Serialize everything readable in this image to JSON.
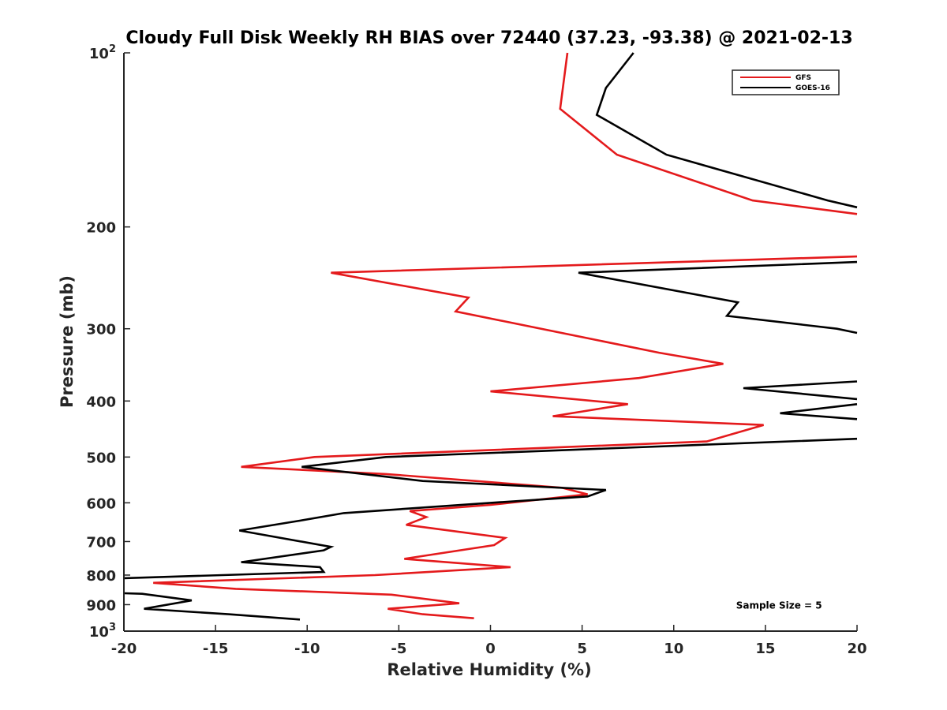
{
  "chart_data": {
    "type": "line",
    "title": "Cloudy Full Disk Weekly RH BIAS over 72440 (37.23, -93.38) @ 2021-02-13",
    "xlabel": "Relative Humidity (%)",
    "ylabel": "Pressure (mb)",
    "xlim": [
      -20,
      20
    ],
    "ylim": [
      100,
      1000
    ],
    "y_scale": "log",
    "y_reversed": true,
    "grid": false,
    "legend_position": "top-right",
    "x_ticks": [
      -20,
      -15,
      -10,
      -5,
      0,
      5,
      10,
      15,
      20
    ],
    "y_ticks": [
      {
        "value": 100,
        "label": "10",
        "sup": "2"
      },
      {
        "value": 200,
        "label": "200",
        "sup": ""
      },
      {
        "value": 300,
        "label": "300",
        "sup": ""
      },
      {
        "value": 400,
        "label": "400",
        "sup": ""
      },
      {
        "value": 500,
        "label": "500",
        "sup": ""
      },
      {
        "value": 600,
        "label": "600",
        "sup": ""
      },
      {
        "value": 700,
        "label": "700",
        "sup": ""
      },
      {
        "value": 800,
        "label": "800",
        "sup": ""
      },
      {
        "value": 900,
        "label": "900",
        "sup": ""
      },
      {
        "value": 1000,
        "label": "10",
        "sup": "3"
      }
    ],
    "series": [
      {
        "name": "GFS",
        "color": "#e41a1c",
        "points": [
          [
            4.2,
            100
          ],
          [
            3.8,
            125
          ],
          [
            6.9,
            150
          ],
          [
            14.3,
            180
          ],
          [
            20,
            190
          ],
          [
            null,
            null
          ],
          [
            20,
            225
          ],
          [
            -8.7,
            240
          ],
          [
            -1.2,
            265
          ],
          [
            -1.9,
            280
          ],
          [
            9.2,
            330
          ],
          [
            12.7,
            345
          ],
          [
            8.1,
            365
          ],
          [
            0,
            385
          ],
          [
            7.5,
            405
          ],
          [
            3.4,
            425
          ],
          [
            14.9,
            440
          ],
          [
            11.8,
            470
          ],
          [
            -9.6,
            500
          ],
          [
            -13.6,
            520
          ],
          [
            -5.7,
            535
          ],
          [
            3.9,
            565
          ],
          [
            5.3,
            580
          ],
          [
            0,
            605
          ],
          [
            -4.4,
            620
          ],
          [
            -3.5,
            635
          ],
          [
            -4.6,
            655
          ],
          [
            0.8,
            690
          ],
          [
            0.2,
            710
          ],
          [
            -4.7,
            750
          ],
          [
            1.1,
            775
          ],
          [
            -6.3,
            800
          ],
          [
            -18.4,
            825
          ],
          [
            -13.9,
            845
          ],
          [
            -5.4,
            865
          ],
          [
            -1.7,
            895
          ],
          [
            -5.6,
            915
          ],
          [
            -3.7,
            935
          ],
          [
            -0.9,
            950
          ]
        ]
      },
      {
        "name": "GOES-16",
        "color": "#000000",
        "points": [
          [
            7.8,
            100
          ],
          [
            6.3,
            115
          ],
          [
            5.8,
            128
          ],
          [
            9.6,
            150
          ],
          [
            18.4,
            180
          ],
          [
            20,
            185
          ],
          [
            null,
            null
          ],
          [
            20,
            230
          ],
          [
            4.8,
            240
          ],
          [
            13.5,
            270
          ],
          [
            12.9,
            285
          ],
          [
            18.9,
            300
          ],
          [
            20,
            305
          ],
          [
            null,
            null
          ],
          [
            20,
            370
          ],
          [
            13.8,
            380
          ],
          [
            20,
            397
          ],
          [
            null,
            null
          ],
          [
            20,
            405
          ],
          [
            15.8,
            420
          ],
          [
            20,
            430
          ],
          [
            null,
            null
          ],
          [
            20,
            465
          ],
          [
            -5.7,
            500
          ],
          [
            -10.3,
            520
          ],
          [
            -3.7,
            550
          ],
          [
            6.3,
            570
          ],
          [
            5.3,
            585
          ],
          [
            0,
            600
          ],
          [
            -8,
            625
          ],
          [
            -10.5,
            645
          ],
          [
            -13.7,
            670
          ],
          [
            -8.7,
            715
          ],
          [
            -9.1,
            725
          ],
          [
            -13.6,
            760
          ],
          [
            -9.3,
            775
          ],
          [
            -9.1,
            790
          ],
          [
            -20,
            810
          ],
          [
            null,
            null
          ],
          [
            -20,
            860
          ],
          [
            -19.0,
            862
          ],
          [
            -16.3,
            885
          ],
          [
            -18.9,
            915
          ],
          [
            -14.3,
            935
          ],
          [
            -10.4,
            955
          ]
        ]
      }
    ],
    "annotations": [
      {
        "text": "Sample Size = 5",
        "x": 13.4,
        "y": 915
      }
    ]
  }
}
